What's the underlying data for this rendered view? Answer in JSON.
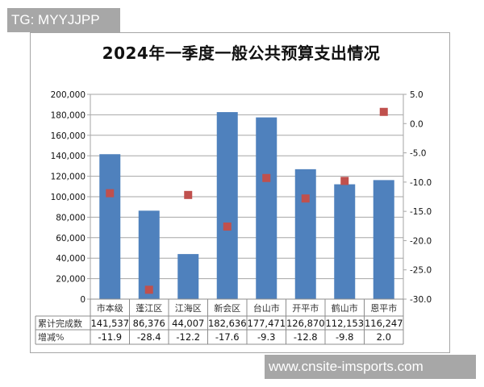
{
  "watermarks": {
    "top": "TG: MYYJJPP",
    "bottom": "www.cnsite-imsports.com"
  },
  "colors": {
    "bar": "#4f81bd",
    "marker": "#c0504d",
    "grid": "#a6a6a6"
  },
  "chart_data": {
    "type": "bar",
    "title": "2024年一季度一般公共预算支出情况",
    "categories": [
      "市本级",
      "蓬江区",
      "江海区",
      "新会区",
      "台山市",
      "开平市",
      "鹤山市",
      "恩平市"
    ],
    "series": [
      {
        "name": "累计完成数",
        "type": "bar",
        "axis": "left",
        "values": [
          141537,
          86376,
          44007,
          182636,
          177471,
          126870,
          112153,
          116247
        ]
      },
      {
        "name": "增减%",
        "type": "scatter",
        "axis": "right",
        "values": [
          -11.9,
          -28.4,
          -12.2,
          -17.6,
          -9.3,
          -12.8,
          -9.8,
          2.0
        ]
      }
    ],
    "left_axis": {
      "ylim": [
        0,
        200000
      ],
      "ticks": [
        "0",
        "20,000",
        "40,000",
        "60,000",
        "80,000",
        "100,000",
        "120,000",
        "140,000",
        "160,000",
        "180,000",
        "200,000"
      ]
    },
    "right_axis": {
      "ylim": [
        -30,
        5
      ],
      "ticks": [
        "-30.0",
        "-25.0",
        "-20.0",
        "-15.0",
        "-10.0",
        "-5.0",
        "0.0",
        "5.0"
      ]
    },
    "data_table": {
      "row_labels": [
        "累计完成数",
        "增减%"
      ],
      "rows": [
        [
          "141,537",
          "86,376",
          "44,007",
          "182,636",
          "177,471",
          "126,870",
          "112,153",
          "116,247"
        ],
        [
          "-11.9",
          "-28.4",
          "-12.2",
          "-17.6",
          "-9.3",
          "-12.8",
          "-9.8",
          "2.0"
        ]
      ]
    },
    "grid": true,
    "legend": "data table"
  }
}
